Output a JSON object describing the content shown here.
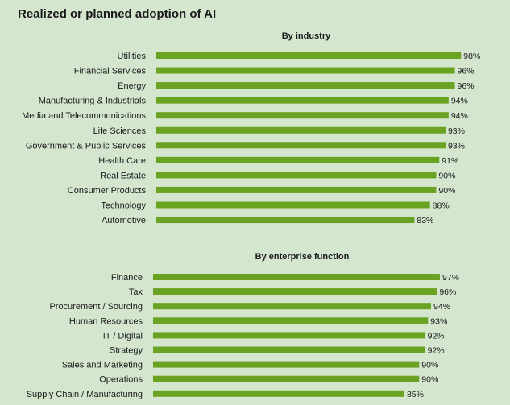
{
  "title": "Realized or planned adoption of AI",
  "colors": {
    "bar": "#6aa322",
    "background": "#d5e6cf"
  },
  "chart_data": [
    {
      "type": "bar",
      "orientation": "horizontal",
      "title": "By industry",
      "categories": [
        "Utilities",
        "Financial Services",
        "Energy",
        "Manufacturing & Industrials",
        "Media and Telecommunications",
        "Life Sciences",
        "Government & Public Services",
        "Health Care",
        "Real Estate",
        "Consumer Products",
        "Technology",
        "Automotive"
      ],
      "values": [
        98,
        96,
        96,
        94,
        94,
        93,
        93,
        91,
        90,
        90,
        88,
        83
      ],
      "labels": [
        "98%",
        "96%",
        "96%",
        "94%",
        "94%",
        "93%",
        "93%",
        "91%",
        "90%",
        "90%",
        "88%",
        "83%"
      ],
      "unit": "%",
      "grid": false,
      "legend": "none"
    },
    {
      "type": "bar",
      "orientation": "horizontal",
      "title": "By enterprise function",
      "categories": [
        "Finance",
        "Tax",
        "Procurement / Sourcing",
        "Human Resources",
        "IT / Digital",
        "Strategy",
        "Sales and Marketing",
        "Operations",
        "Supply Chain / Manufacturing"
      ],
      "values": [
        97,
        96,
        94,
        93,
        92,
        92,
        90,
        90,
        85
      ],
      "labels": [
        "97%",
        "96%",
        "94%",
        "93%",
        "92%",
        "92%",
        "90%",
        "90%",
        "85%"
      ],
      "unit": "%",
      "grid": false,
      "legend": "none"
    }
  ]
}
